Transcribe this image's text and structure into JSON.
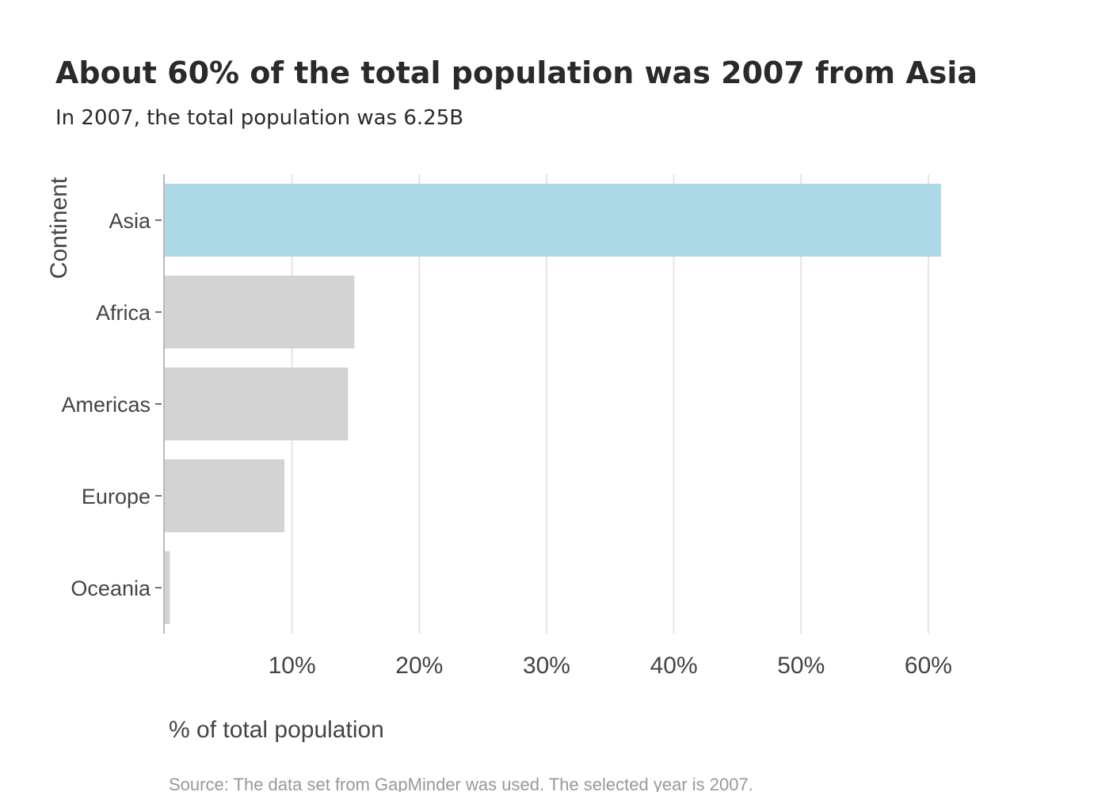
{
  "chart_data": {
    "type": "bar",
    "orientation": "horizontal",
    "title": "About 60% of the total population was 2007 from Asia",
    "subtitle": "In 2007, the total population was 6.25B",
    "categories": [
      "Asia",
      "Africa",
      "Americas",
      "Europe",
      "Oceania"
    ],
    "values": [
      61.0,
      14.9,
      14.4,
      9.4,
      0.4
    ],
    "unit": "%",
    "xlabel": "% of total population",
    "ylabel": "Continent",
    "xlim": [
      0,
      66
    ],
    "xticks": [
      "10%",
      "20%",
      "30%",
      "40%",
      "50%",
      "60%"
    ],
    "xtick_values": [
      10,
      20,
      30,
      40,
      50,
      60
    ],
    "grid": true,
    "highlight_category": "Asia",
    "highlight_color": "#add8e6",
    "bar_color": "#d3d3d3",
    "source": "Source: The data set from GapMinder was used. The selected year is 2007."
  }
}
